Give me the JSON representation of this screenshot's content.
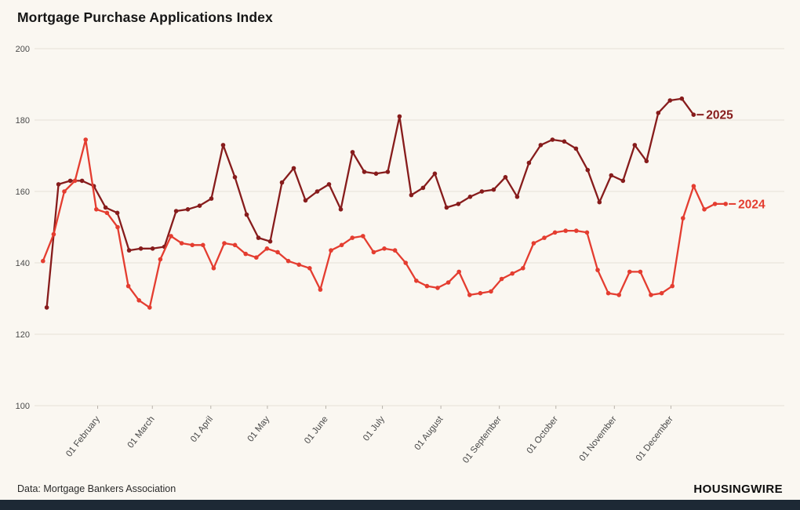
{
  "title": "Mortgage Purchase Applications Index",
  "footer": {
    "source": "Data: Mortgage Bankers Association",
    "brand": "HOUSINGWIRE"
  },
  "colors": {
    "bg": "#faf7f1",
    "grid": "#e6e1d8",
    "tick": "#b7b2a9",
    "axis_text": "#4a4a4a",
    "text": "#151515",
    "bottom_bar": "#1d2935",
    "series_2025": "#871c1c",
    "series_2024": "#e43d30"
  },
  "chart_data": {
    "type": "line",
    "title": "Mortgage Purchase Applications Index",
    "xlabel": "",
    "ylabel": "",
    "grid": "horizontal-only",
    "legend_position": "line-end-right",
    "y_axis": {
      "range": [
        100,
        200
      ],
      "ticks": [
        100,
        120,
        140,
        160,
        180,
        200
      ]
    },
    "x_domain_days": [
      1,
      372
    ],
    "x_axis": {
      "tick_labels": [
        "01 February",
        "01 March",
        "01 April",
        "01 May",
        "01 June",
        "01 July",
        "01 August",
        "01 September",
        "01 October",
        "01 November",
        "01 December"
      ],
      "tick_days": [
        32,
        61,
        92,
        122,
        153,
        183,
        214,
        245,
        275,
        306,
        336
      ]
    },
    "series": [
      {
        "name": "2025",
        "label": "2025",
        "color": "#871c1c",
        "start_day": 5,
        "end_day": 348,
        "values": [
          127.5,
          162,
          163,
          163,
          161.5,
          155.5,
          154,
          143.5,
          144,
          144,
          144.5,
          154.5,
          155,
          156,
          158,
          173,
          164,
          153.5,
          147,
          146,
          162.5,
          166.5,
          157.5,
          160,
          162,
          155,
          171,
          165.5,
          165,
          165.5,
          181,
          159,
          161,
          165,
          155.5,
          156.5,
          158.5,
          160,
          160.5,
          164,
          158.5,
          168,
          173,
          174.5,
          174,
          172,
          166,
          157,
          164.5,
          163,
          173,
          168.5,
          182,
          185.5,
          186,
          181.5
        ]
      },
      {
        "name": "2024",
        "label": "2024",
        "color": "#e43d30",
        "start_day": 3,
        "end_day": 365,
        "values": [
          140.5,
          148,
          160,
          163,
          174.5,
          155,
          154,
          150,
          133.5,
          129.5,
          127.5,
          141,
          147.5,
          145.5,
          145,
          145,
          138.5,
          145.5,
          145,
          142.5,
          141.5,
          144,
          143,
          140.5,
          139.5,
          138.5,
          132.5,
          143.5,
          145,
          147,
          147.5,
          143,
          144,
          143.5,
          140,
          135,
          133.5,
          133,
          134.5,
          137.5,
          131,
          131.5,
          132,
          135.5,
          137,
          138.5,
          145.5,
          147,
          148.5,
          149,
          149,
          148.5,
          138,
          131.5,
          131,
          137.5,
          137.5,
          131,
          131.5,
          133.5,
          152.5,
          161.5,
          155,
          156.5,
          156.5
        ]
      }
    ]
  }
}
